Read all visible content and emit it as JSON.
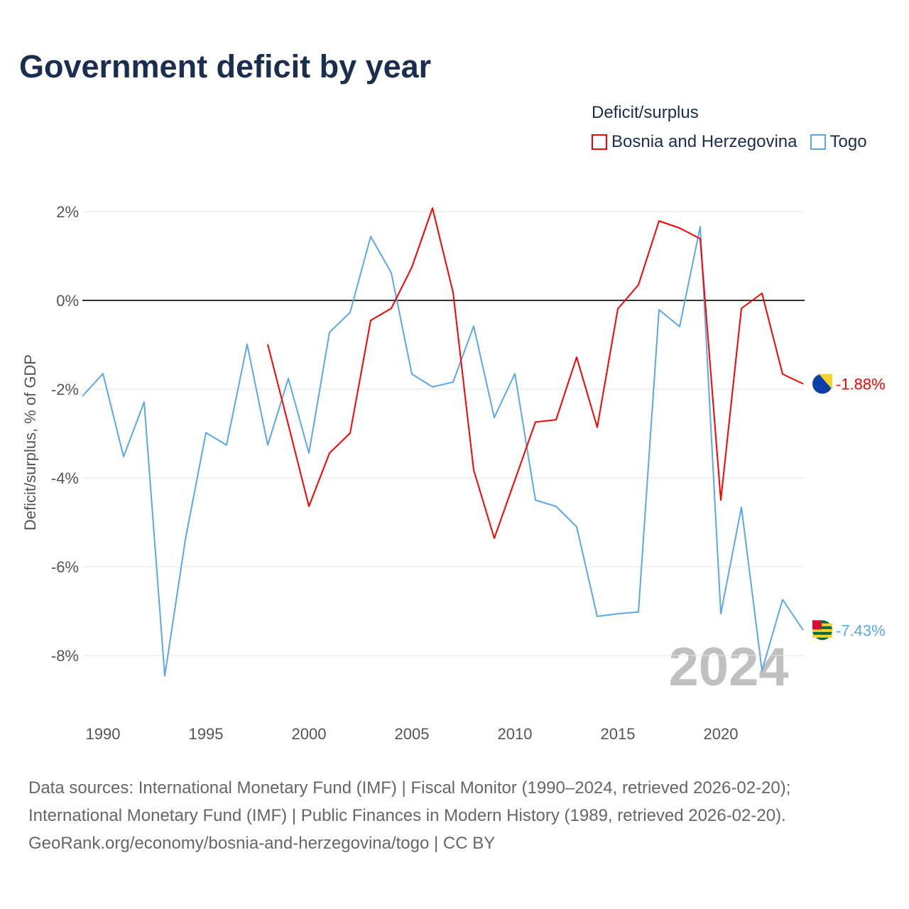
{
  "title": "Government deficit by year",
  "chart_data": {
    "type": "line",
    "title": "Government deficit by year",
    "xlabel": "",
    "ylabel": "Deficit/surplus, % of GDP",
    "legend_title": "Deficit/surplus",
    "legend_position": "top-right",
    "ylim": [
      -9,
      2
    ],
    "xlim": [
      1989,
      2024
    ],
    "yticks": [
      2,
      0,
      -2,
      -4,
      -6,
      -8
    ],
    "ytick_labels": [
      "2%",
      "0%",
      "-2%",
      "-4%",
      "-6%",
      "-8%"
    ],
    "xticks": [
      1990,
      1995,
      2000,
      2005,
      2010,
      2015,
      2020
    ],
    "xtick_labels": [
      "1990",
      "1995",
      "2000",
      "2005",
      "2010",
      "2015",
      "2020"
    ],
    "watermark_year": "2024",
    "series": [
      {
        "name": "Bosnia and Herzegovina",
        "color": "#ff0000",
        "end_label": "-1.88%",
        "x": [
          1998,
          1999,
          2000,
          2001,
          2002,
          2003,
          2004,
          2005,
          2006,
          2007,
          2008,
          2009,
          2010,
          2011,
          2012,
          2013,
          2014,
          2015,
          2016,
          2017,
          2018,
          2019,
          2020,
          2021,
          2022,
          2023,
          2024
        ],
        "values": [
          -0.99,
          -2.8,
          -4.64,
          -3.44,
          -2.99,
          -0.45,
          -0.18,
          0.75,
          2.08,
          0.18,
          -3.82,
          -5.36,
          -4.05,
          -2.74,
          -2.69,
          -1.28,
          -2.86,
          -0.19,
          0.35,
          1.79,
          1.63,
          1.39,
          -4.5,
          -0.18,
          0.16,
          -1.66,
          -1.88
        ]
      },
      {
        "name": "Togo",
        "color": "#5ba7ec",
        "end_label": "-7.43%",
        "x": [
          1989,
          1990,
          1991,
          1992,
          1993,
          1994,
          1995,
          1996,
          1997,
          1998,
          1999,
          2000,
          2001,
          2002,
          2003,
          2004,
          2005,
          2006,
          2007,
          2008,
          2009,
          2010,
          2011,
          2012,
          2013,
          2014,
          2015,
          2016,
          2017,
          2018,
          2019,
          2020,
          2021,
          2022,
          2023,
          2024
        ],
        "values": [
          -2.16,
          -1.65,
          -3.52,
          -2.29,
          -8.46,
          -5.39,
          -2.98,
          -3.26,
          -0.99,
          -3.26,
          -1.76,
          -3.44,
          -0.72,
          -0.27,
          1.44,
          0.62,
          -1.66,
          -1.95,
          -1.84,
          -0.58,
          -2.64,
          -1.65,
          -4.5,
          -4.64,
          -5.1,
          -7.12,
          -7.06,
          -7.02,
          -0.21,
          -0.59,
          1.66,
          -7.06,
          -4.66,
          -8.34,
          -6.74,
          -7.43
        ]
      }
    ]
  },
  "footer": {
    "line1": "Data sources: International Monetary Fund (IMF) | Fiscal Monitor (1990–2024, retrieved 2026-02-20);",
    "line2": "International Monetary Fund (IMF) | Public Finances in Modern History (1989, retrieved 2026-02-20).",
    "line3": "GeoRank.org/economy/bosnia-and-herzegovina/togo | CC BY"
  }
}
